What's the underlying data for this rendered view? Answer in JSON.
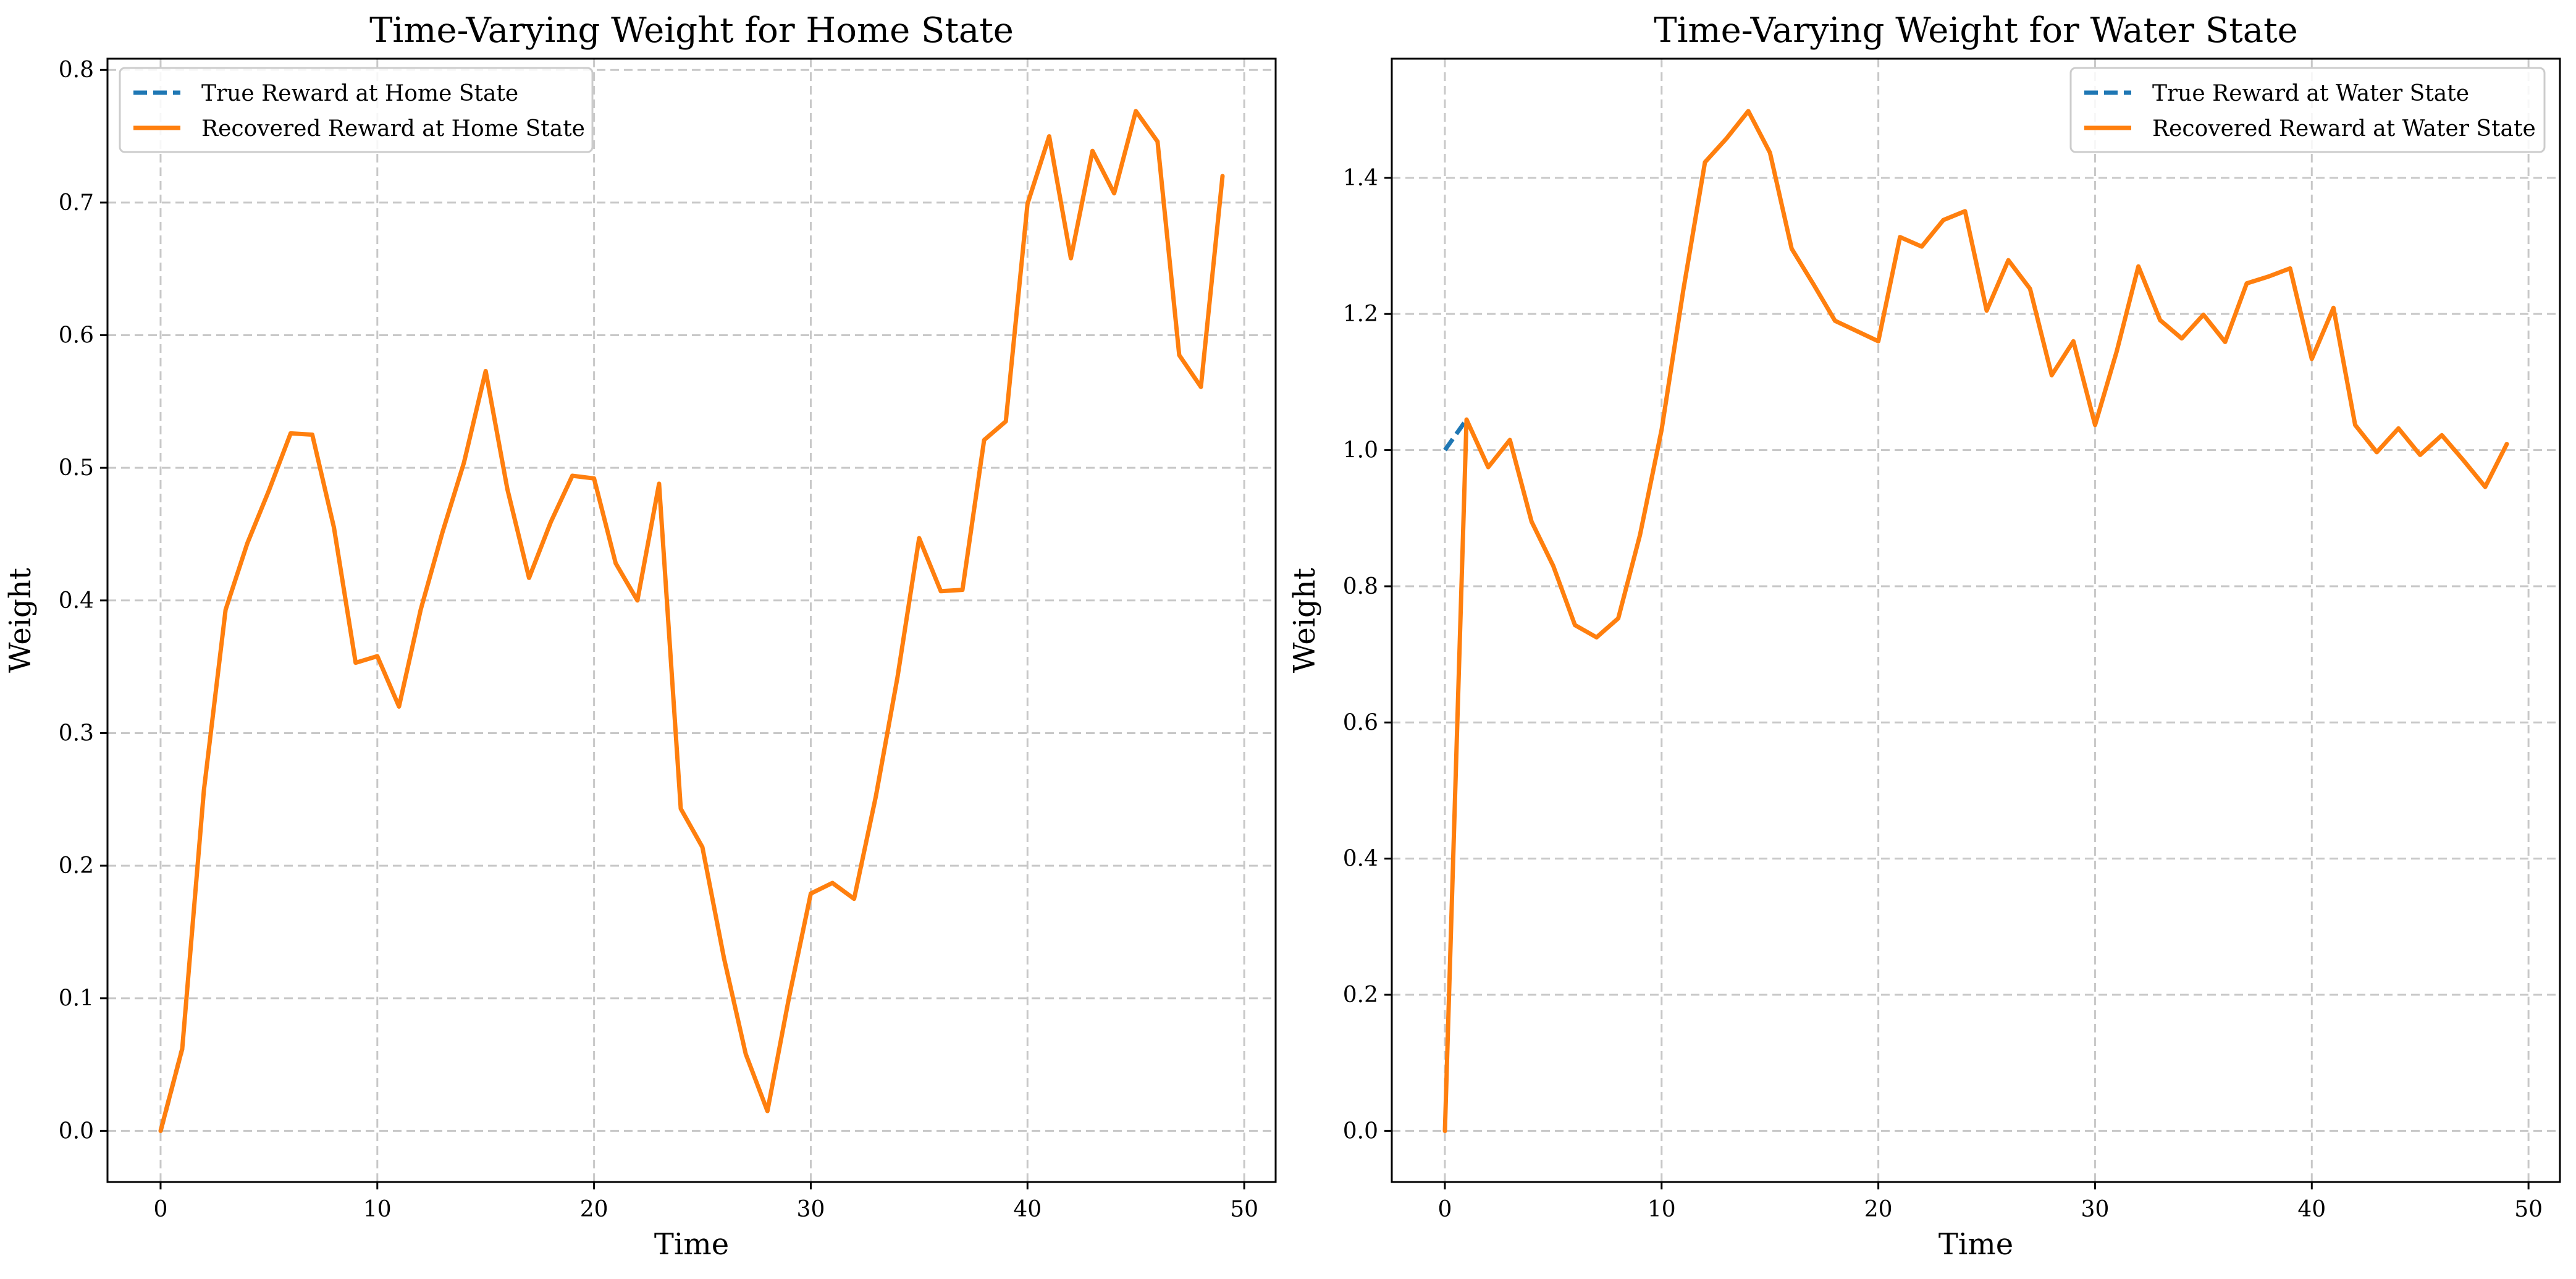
{
  "chart_data": [
    {
      "type": "line",
      "title": "Time-Varying Weight for Home State",
      "xlabel": "Time",
      "ylabel": "Weight",
      "xlim": [
        -2.45,
        51.45
      ],
      "ylim": [
        -0.0385,
        0.8085
      ],
      "xticks": [
        0,
        10,
        20,
        30,
        40,
        50
      ],
      "xtick_labels": [
        "0",
        "10",
        "20",
        "30",
        "40",
        "50"
      ],
      "yticks": [
        0.0,
        0.1,
        0.2,
        0.3,
        0.4,
        0.5,
        0.6,
        0.7,
        0.8
      ],
      "ytick_labels": [
        "0.0",
        "0.1",
        "0.2",
        "0.3",
        "0.4",
        "0.5",
        "0.6",
        "0.7",
        "0.8"
      ],
      "grid": true,
      "legend_position": "top-left",
      "series": [
        {
          "name": "True Reward at Home State",
          "color": "#1f77b4",
          "dash": true,
          "x": [
            0,
            1
          ],
          "values": [
            0.0,
            0.062
          ]
        },
        {
          "name": "Recovered Reward at Home State",
          "color": "#ff7f0e",
          "dash": false,
          "x": [
            0,
            1,
            2,
            3,
            4,
            5,
            6,
            7,
            8,
            9,
            10,
            11,
            12,
            13,
            14,
            15,
            16,
            17,
            18,
            19,
            20,
            21,
            22,
            23,
            24,
            25,
            26,
            27,
            28,
            29,
            30,
            31,
            32,
            33,
            34,
            35,
            36,
            37,
            38,
            39,
            40,
            41,
            42,
            43,
            44,
            45,
            46,
            47,
            48,
            49
          ],
          "values": [
            0.0,
            0.062,
            0.257,
            0.393,
            0.443,
            0.483,
            0.526,
            0.525,
            0.455,
            0.353,
            0.358,
            0.32,
            0.393,
            0.451,
            0.504,
            0.573,
            0.484,
            0.417,
            0.459,
            0.494,
            0.492,
            0.428,
            0.4,
            0.488,
            0.243,
            0.214,
            0.13,
            0.058,
            0.015,
            0.101,
            0.179,
            0.187,
            0.175,
            0.252,
            0.342,
            0.447,
            0.407,
            0.408,
            0.521,
            0.535,
            0.699,
            0.75,
            0.658,
            0.739,
            0.707,
            0.769,
            0.746,
            0.585,
            0.561,
            0.72
          ]
        }
      ]
    },
    {
      "type": "line",
      "title": "Time-Varying Weight for Water State",
      "xlabel": "Time",
      "ylabel": "Weight",
      "xlim": [
        -2.45,
        51.45
      ],
      "ylim": [
        -0.075,
        1.575
      ],
      "xticks": [
        0,
        10,
        20,
        30,
        40,
        50
      ],
      "xtick_labels": [
        "0",
        "10",
        "20",
        "30",
        "40",
        "50"
      ],
      "yticks": [
        0.0,
        0.2,
        0.4,
        0.6,
        0.8,
        1.0,
        1.2,
        1.4
      ],
      "ytick_labels": [
        "0.0",
        "0.2",
        "0.4",
        "0.6",
        "0.8",
        "1.0",
        "1.2",
        "1.4"
      ],
      "grid": true,
      "legend_position": "top-right",
      "series": [
        {
          "name": "True Reward at Water State",
          "color": "#1f77b4",
          "dash": true,
          "x": [
            0,
            1
          ],
          "values": [
            1.0,
            1.045
          ]
        },
        {
          "name": "Recovered Reward at Water State",
          "color": "#ff7f0e",
          "dash": false,
          "x": [
            0,
            1,
            2,
            3,
            4,
            5,
            6,
            7,
            8,
            9,
            10,
            11,
            12,
            13,
            14,
            15,
            16,
            17,
            18,
            19,
            20,
            21,
            22,
            23,
            24,
            25,
            26,
            27,
            28,
            29,
            30,
            31,
            32,
            33,
            34,
            35,
            36,
            37,
            38,
            39,
            40,
            41,
            42,
            43,
            44,
            45,
            46,
            47,
            48,
            49
          ],
          "values": [
            0.0,
            1.045,
            0.975,
            1.015,
            0.895,
            0.83,
            0.743,
            0.725,
            0.753,
            0.875,
            1.03,
            1.235,
            1.423,
            1.458,
            1.498,
            1.437,
            1.296,
            1.244,
            1.19,
            1.175,
            1.16,
            1.313,
            1.299,
            1.338,
            1.351,
            1.205,
            1.279,
            1.237,
            1.11,
            1.16,
            1.037,
            1.145,
            1.27,
            1.191,
            1.164,
            1.199,
            1.159,
            1.245,
            1.255,
            1.267,
            1.134,
            1.209,
            1.037,
            0.997,
            1.032,
            0.993,
            1.022,
            0.985,
            0.946,
            1.009
          ]
        }
      ]
    }
  ]
}
